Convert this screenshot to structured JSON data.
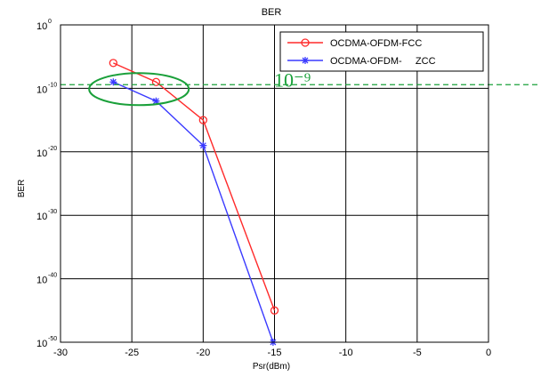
{
  "chart_data": {
    "type": "line",
    "title": "BER",
    "xlabel": "Psr(dBm)",
    "ylabel": "BER",
    "xlim": [
      -30,
      0
    ],
    "ylim_exponent": [
      -50,
      0
    ],
    "log_y": true,
    "grid": true,
    "x_ticks": [
      "-30",
      "-25",
      "-20",
      "-15",
      "-10",
      "-5",
      "0"
    ],
    "y_ticks": [
      {
        "base": "10",
        "exp": "0"
      },
      {
        "base": "10",
        "exp": "-10"
      },
      {
        "base": "10",
        "exp": "-20"
      },
      {
        "base": "10",
        "exp": "-30"
      },
      {
        "base": "10",
        "exp": "-40"
      },
      {
        "base": "10",
        "exp": "-50"
      }
    ],
    "legend_position": "top-right",
    "series": [
      {
        "name": "OCDMA-OFDM-FCC",
        "color": "#ff2a2a",
        "marker": "circle",
        "points": [
          {
            "x": -26.3,
            "log10_ber": -6
          },
          {
            "x": -23.3,
            "log10_ber": -9
          },
          {
            "x": -20,
            "log10_ber": -15
          },
          {
            "x": -15,
            "log10_ber": -45
          }
        ]
      },
      {
        "name": "OCDMA-OFDM-     ZCC",
        "color": "#3a3aff",
        "marker": "star",
        "points": [
          {
            "x": -26.3,
            "log10_ber": -9
          },
          {
            "x": -23.3,
            "log10_ber": -12
          },
          {
            "x": -20,
            "log10_ber": -19
          },
          {
            "x": -15.1,
            "log10_ber": -50
          }
        ]
      }
    ],
    "annotation": {
      "text": "10⁻⁹",
      "color": "#1aa03a",
      "reference_log10_ber": -9
    }
  }
}
